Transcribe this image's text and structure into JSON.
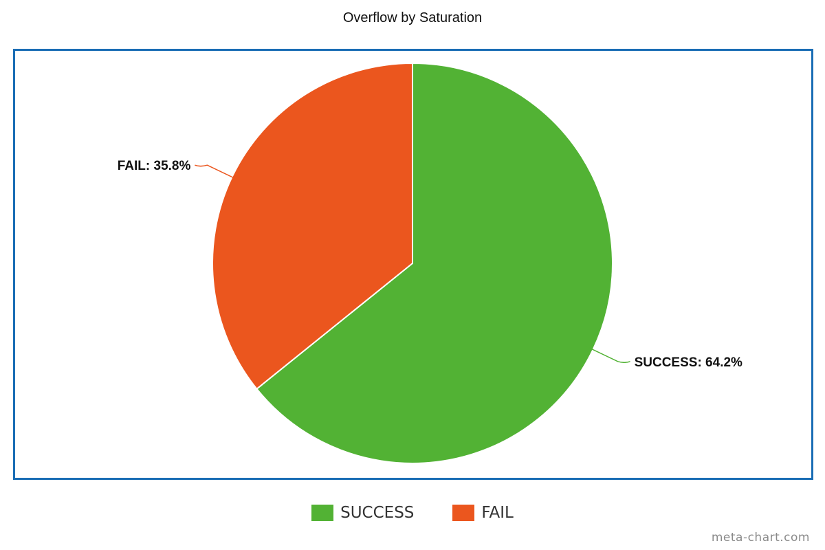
{
  "chart_data": {
    "type": "pie",
    "title": "Overflow by Saturation",
    "slices": [
      {
        "label": "SUCCESS",
        "value": 64.2,
        "display": "SUCCESS: 64.2%",
        "color": "#52b234"
      },
      {
        "label": "FAIL",
        "value": 35.8,
        "display": "FAIL: 35.8%",
        "color": "#eb561e"
      }
    ],
    "legend": {
      "placement": "bottom-center",
      "entries": [
        "SUCCESS",
        "FAIL"
      ]
    },
    "start_angle": "top",
    "direction": "clockwise"
  },
  "frame_color": "#1a6db5",
  "watermark": "meta-chart.com"
}
